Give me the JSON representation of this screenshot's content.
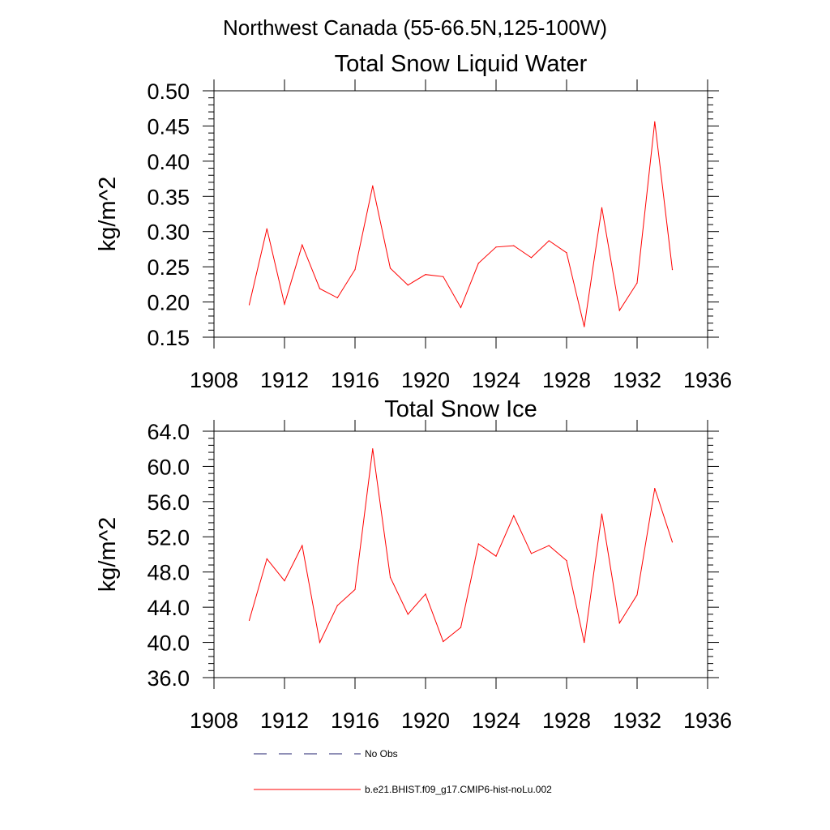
{
  "figure": {
    "suptitle": "Northwest Canada (55-66.5N,125-100W)"
  },
  "legend": {
    "entries": [
      {
        "label": "No Obs",
        "style": "dashed",
        "color": "#1f1f6e"
      },
      {
        "label": "b.e21.BHIST.f09_g17.CMIP6-hist-noLu.002",
        "style": "solid",
        "color": "#ff0000"
      }
    ]
  },
  "chart_data": [
    {
      "type": "line",
      "title": "Total Snow Liquid Water",
      "xlabel": "",
      "ylabel": "kg/m^2",
      "xlim": [
        1908,
        1936
      ],
      "ylim": [
        0.15,
        0.5
      ],
      "xticks": [
        "1908",
        "1912",
        "1916",
        "1920",
        "1924",
        "1928",
        "1932",
        "1936"
      ],
      "yticks": [
        "0.15",
        "0.20",
        "0.25",
        "0.30",
        "0.35",
        "0.40",
        "0.45",
        "0.50"
      ],
      "grid": false,
      "x": [
        1910,
        1911,
        1912,
        1913,
        1914,
        1915,
        1916,
        1917,
        1918,
        1919,
        1920,
        1921,
        1922,
        1923,
        1924,
        1925,
        1926,
        1927,
        1928,
        1929,
        1930,
        1931,
        1932,
        1933,
        1934
      ],
      "series": [
        {
          "name": "b.e21.BHIST.f09_g17.CMIP6-hist-noLu.002",
          "color": "#ff0000",
          "values": [
            0.196,
            0.304,
            0.197,
            0.281,
            0.219,
            0.206,
            0.246,
            0.365,
            0.248,
            0.224,
            0.239,
            0.236,
            0.192,
            0.255,
            0.278,
            0.28,
            0.263,
            0.287,
            0.27,
            0.165,
            0.334,
            0.188,
            0.227,
            0.456,
            0.246
          ]
        }
      ]
    },
    {
      "type": "line",
      "title": "Total Snow Ice",
      "xlabel": "",
      "ylabel": "kg/m^2",
      "xlim": [
        1908,
        1936
      ],
      "ylim": [
        36.0,
        64.0
      ],
      "xticks": [
        "1908",
        "1912",
        "1916",
        "1920",
        "1924",
        "1928",
        "1932",
        "1936"
      ],
      "yticks": [
        "36.0",
        "40.0",
        "44.0",
        "48.0",
        "52.0",
        "56.0",
        "60.0",
        "64.0"
      ],
      "grid": false,
      "x": [
        1910,
        1911,
        1912,
        1913,
        1914,
        1915,
        1916,
        1917,
        1918,
        1919,
        1920,
        1921,
        1922,
        1923,
        1924,
        1925,
        1926,
        1927,
        1928,
        1929,
        1930,
        1931,
        1932,
        1933,
        1934
      ],
      "series": [
        {
          "name": "b.e21.BHIST.f09_g17.CMIP6-hist-noLu.002",
          "color": "#ff0000",
          "values": [
            42.5,
            49.5,
            47.0,
            51.0,
            40.0,
            44.2,
            46.0,
            62.0,
            47.4,
            43.2,
            45.5,
            40.1,
            41.7,
            51.2,
            49.8,
            54.4,
            50.1,
            51.0,
            49.3,
            40.0,
            54.6,
            42.2,
            45.4,
            57.5,
            51.4
          ]
        }
      ]
    }
  ]
}
